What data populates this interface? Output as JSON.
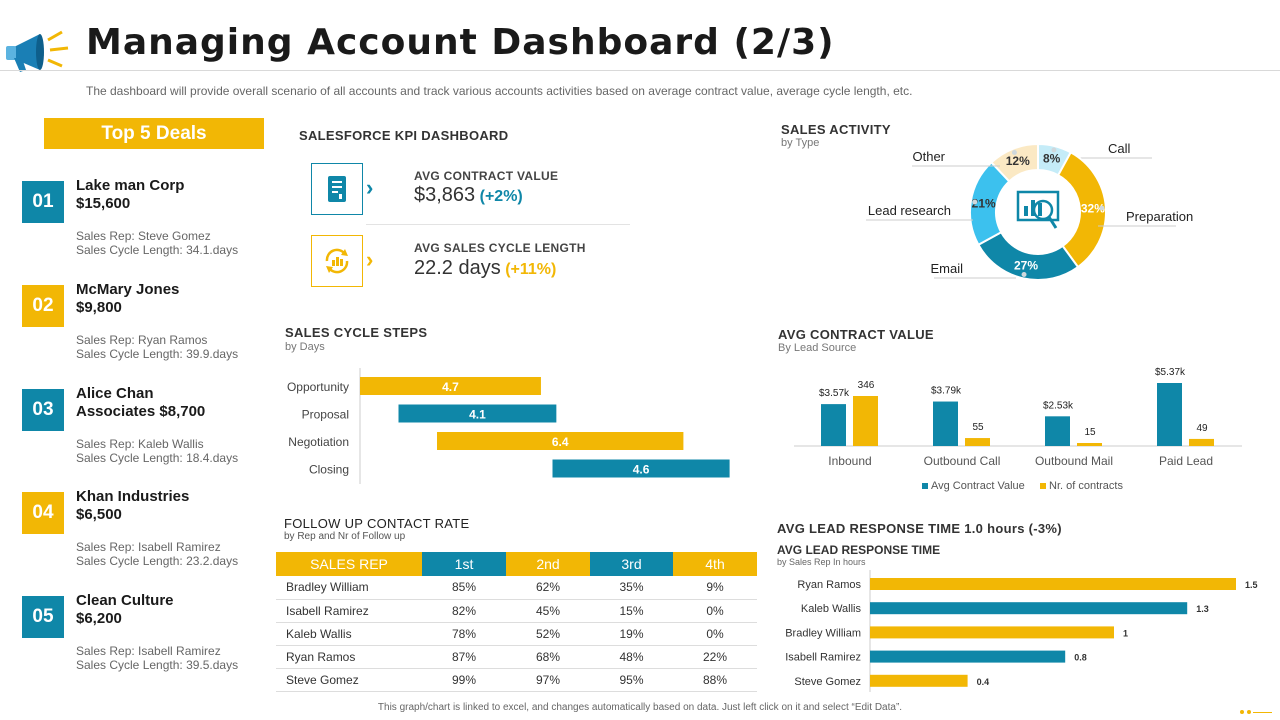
{
  "page": {
    "title": "Managing Account Dashboard (2/3)",
    "subtitle": "The dashboard will provide overall scenario of all accounts and track various accounts activities based on average contract value, average cycle length, etc.",
    "footer": "This graph/chart is linked to excel, and changes automatically based on data. Just left click on it and select “Edit Data”."
  },
  "colors": {
    "teal": "#0f87a8",
    "yellow": "#f2b705",
    "light_blue": "#3cc1ee",
    "cream": "#fbe9c4",
    "pale_blue": "#c5ecf8"
  },
  "icons": {
    "header": "megaphone-icon",
    "kpi1": "document-chart-icon",
    "kpi2": "cycle-dollar-icon",
    "activity_center": "chart-magnifier-icon"
  },
  "top_deals": {
    "heading": "Top 5 Deals",
    "items": [
      {
        "num": "01",
        "name": "Lake man Corp",
        "amount": "$15,600",
        "rep": "Sales Rep: Steve Gomez",
        "cycle": "Sales Cycle Length: 34.1.days",
        "color": "#0f87a8"
      },
      {
        "num": "02",
        "name": "McMary Jones",
        "amount": "$9,800",
        "rep": "Sales Rep: Ryan Ramos",
        "cycle": "Sales Cycle Length: 39.9.days",
        "color": "#f2b705"
      },
      {
        "num": "03",
        "name": "Alice Chan",
        "amount": "Associates $8,700",
        "rep": "Sales Rep: Kaleb Wallis",
        "cycle": "Sales Cycle Length: 18.4.days",
        "color": "#0f87a8"
      },
      {
        "num": "04",
        "name": "Khan Industries",
        "amount": "$6,500",
        "rep": "Sales Rep: Isabell Ramirez",
        "cycle": "Sales Cycle Length: 23.2.days",
        "color": "#f2b705"
      },
      {
        "num": "05",
        "name": "Clean Culture",
        "amount": "$6,200",
        "rep": "Sales Rep: Isabell Ramirez",
        "cycle": "Sales Cycle Length: 39.5.days",
        "color": "#0f87a8"
      }
    ]
  },
  "kpi": {
    "heading": "SALESFORCE  KPI DASHBOARD",
    "items": [
      {
        "label": "AVG CONTRACT  VALUE",
        "value": "$3,863",
        "delta": "(+2%)"
      },
      {
        "label": "AVG SALES CYCLE LENGTH",
        "value": "22.2 days",
        "delta": "(+11%)"
      }
    ]
  },
  "follow_up": {
    "title": "FOLLOW UP CONTACT  RATE",
    "subtitle": "by Rep and Nr of Follow up",
    "columns": [
      "SALES REP",
      "1st",
      "2nd",
      "3rd",
      "4th"
    ],
    "rows": [
      [
        "Bradley William",
        "85%",
        "62%",
        "35%",
        "9%"
      ],
      [
        "Isabell Ramirez",
        "82%",
        "45%",
        "15%",
        "0%"
      ],
      [
        "Kaleb Wallis",
        "78%",
        "52%",
        "19%",
        "0%"
      ],
      [
        "Ryan Ramos",
        "87%",
        "68%",
        "48%",
        "22%"
      ],
      [
        "Steve Gomez",
        "99%",
        "97%",
        "95%",
        "88%"
      ]
    ]
  },
  "lead_response": {
    "heading": "AVG LEAD RESPONSE TIME 1.0 hours (-3%)"
  },
  "chart_data": [
    {
      "id": "sales_activity",
      "type": "pie",
      "title": "SALES ACTIVITY",
      "subtitle": "by Type",
      "slices": [
        {
          "label": "Call",
          "value": 8,
          "display": "8%",
          "color": "#c5ecf8"
        },
        {
          "label": "Preparation",
          "value": 32,
          "display": "32%",
          "color": "#f2b705"
        },
        {
          "label": "Email",
          "value": 27,
          "display": "27%",
          "color": "#0f87a8"
        },
        {
          "label": "Lead research",
          "value": 21,
          "display": "21%",
          "color": "#3cc1ee"
        },
        {
          "label": "Other",
          "value": 12,
          "display": "12%",
          "color": "#fbe9c4"
        }
      ]
    },
    {
      "id": "sales_cycle_steps",
      "type": "bar",
      "title": "SALES CYCLE STEPS",
      "subtitle": "by Days",
      "categories": [
        "Opportunity",
        "Proposal",
        "Negotiation",
        "Closing"
      ],
      "values": [
        4.7,
        4.1,
        6.4,
        4.6
      ],
      "colors": [
        "#f2b705",
        "#0f87a8",
        "#f2b705",
        "#0f87a8"
      ],
      "orientation": "horizontal-waterfall"
    },
    {
      "id": "avg_contract_value",
      "type": "bar",
      "title": "AVG CONTRACT VALUE",
      "subtitle": "By Lead Source",
      "categories": [
        "Inbound",
        "Outbound Call",
        "Outbound Mail",
        "Paid Lead"
      ],
      "series": [
        {
          "name": "Avg Contract Value",
          "values": [
            3570,
            3790,
            2530,
            5370
          ],
          "labels": [
            "$3.57k",
            "$3.79k",
            "$2.53k",
            "$5.37k"
          ],
          "color": "#0f87a8"
        },
        {
          "name": "Nr. of contracts",
          "values": [
            346,
            55,
            15,
            49
          ],
          "labels": [
            "346",
            "55",
            "15",
            "49"
          ],
          "color": "#f2b705"
        }
      ],
      "legend": "bottom"
    },
    {
      "id": "avg_lead_response",
      "type": "bar",
      "title": "AVG LEAD RESPONSE TIME",
      "subtitle": "by Sales Rep In hours",
      "categories": [
        "Ryan Ramos",
        "Kaleb Wallis",
        "Bradley William",
        "Isabell Ramirez",
        "Steve Gomez"
      ],
      "values": [
        1.5,
        1.3,
        1,
        0.8,
        0.4
      ],
      "colors": [
        "#f2b705",
        "#0f87a8",
        "#f2b705",
        "#0f87a8",
        "#f2b705"
      ],
      "orientation": "horizontal"
    }
  ]
}
